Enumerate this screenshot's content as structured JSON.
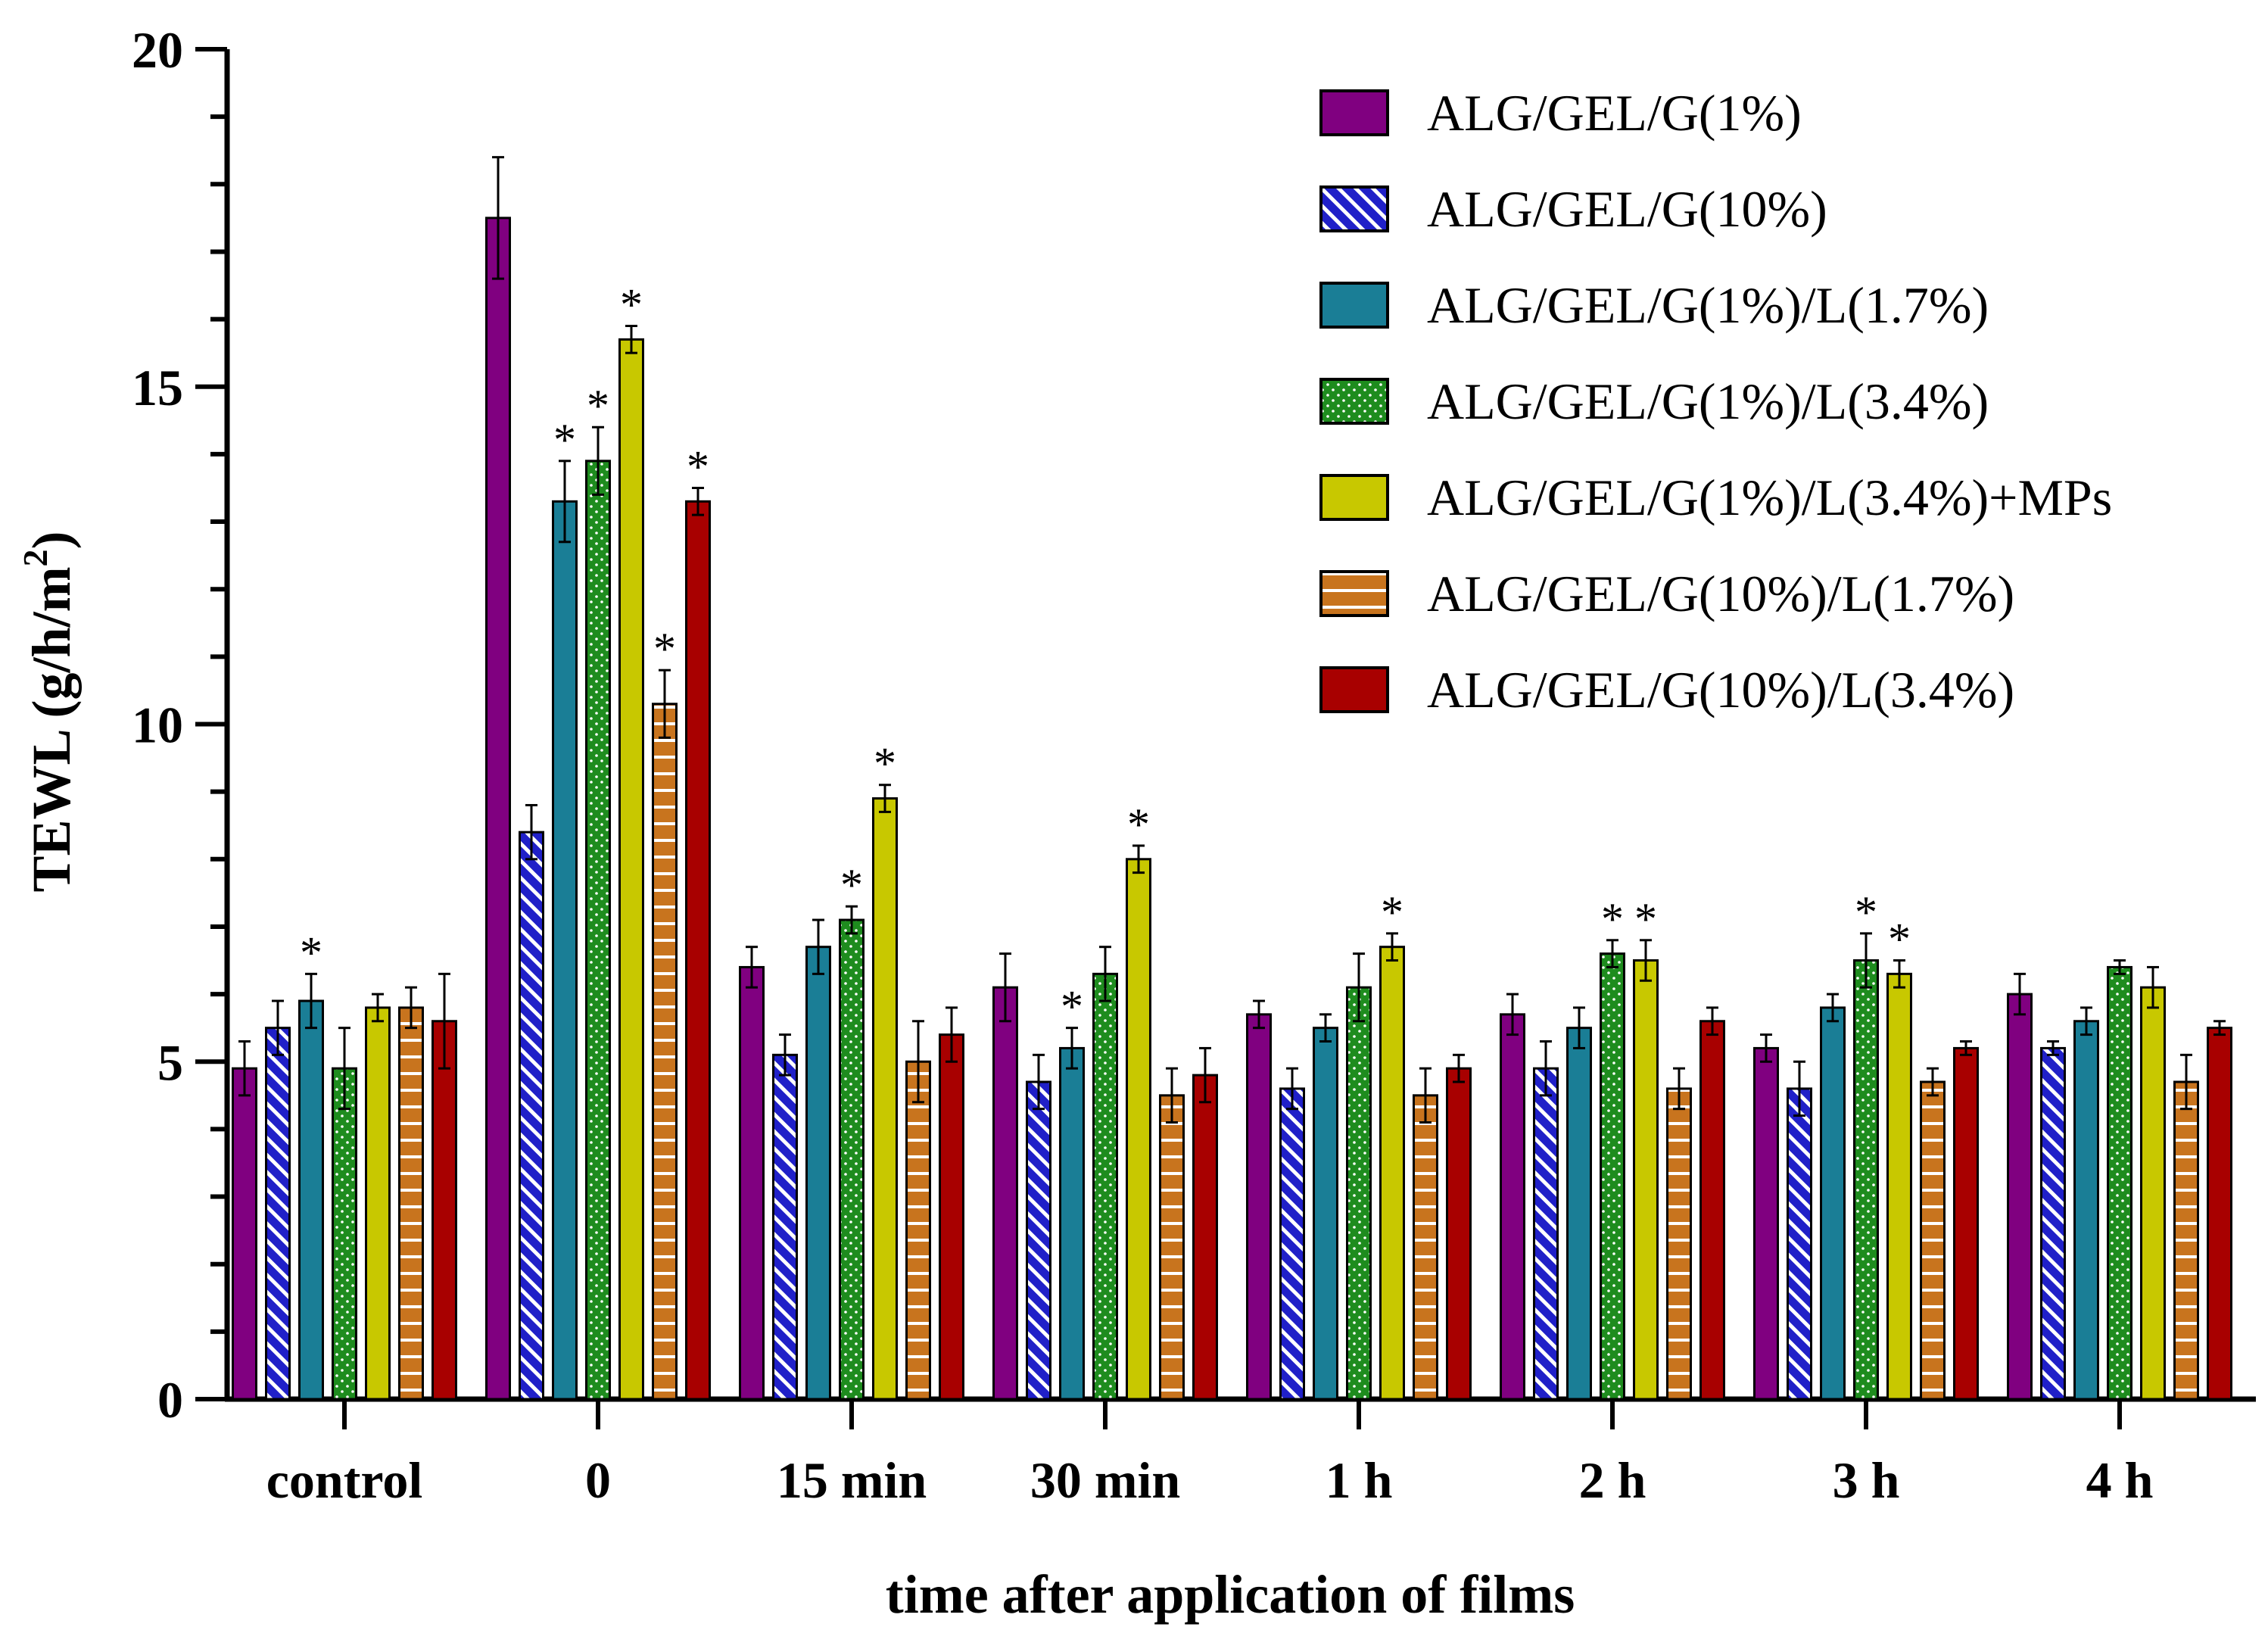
{
  "chart_data": {
    "type": "bar",
    "title": "",
    "xlabel": "time after application of films",
    "ylabel": "TEWL (g/h/m",
    "ylabel_sup": "2",
    "ylabel_close": ")",
    "ylim": [
      0,
      20
    ],
    "yticks": [
      0,
      5,
      10,
      15,
      20
    ],
    "categories": [
      "control",
      "0",
      "15 min",
      "30 min",
      "1 h",
      "2 h",
      "3 h",
      "4 h"
    ],
    "series": [
      {
        "name": "ALG/GEL/G(1%)",
        "color": "#800080",
        "pattern": "solid",
        "values": [
          4.9,
          17.5,
          6.4,
          6.1,
          5.7,
          5.7,
          5.2,
          6.0
        ],
        "errors": [
          0.4,
          0.9,
          0.3,
          0.5,
          0.2,
          0.3,
          0.2,
          0.3
        ],
        "significant": [
          false,
          false,
          false,
          false,
          false,
          false,
          false,
          false
        ]
      },
      {
        "name": "ALG/GEL/G(10%)",
        "color": "#2020c8",
        "pattern": "diagonal",
        "values": [
          5.5,
          8.4,
          5.1,
          4.7,
          4.6,
          4.9,
          4.6,
          5.2
        ],
        "errors": [
          0.4,
          0.4,
          0.3,
          0.4,
          0.3,
          0.4,
          0.4,
          0.1
        ],
        "significant": [
          false,
          false,
          false,
          false,
          false,
          false,
          false,
          false
        ]
      },
      {
        "name": "ALG/GEL/G(1%)/L(1.7%)",
        "color": "#1a7e96",
        "pattern": "solid",
        "values": [
          5.9,
          13.3,
          6.7,
          5.2,
          5.5,
          5.5,
          5.8,
          5.6
        ],
        "errors": [
          0.4,
          0.6,
          0.4,
          0.3,
          0.2,
          0.3,
          0.2,
          0.2
        ],
        "significant": [
          true,
          true,
          false,
          true,
          false,
          false,
          false,
          false
        ]
      },
      {
        "name": "ALG/GEL/G(1%)/L(3.4%)",
        "color": "#1e8c1e",
        "pattern": "dots",
        "values": [
          4.9,
          13.9,
          7.1,
          6.3,
          6.1,
          6.6,
          6.5,
          6.4
        ],
        "errors": [
          0.6,
          0.5,
          0.2,
          0.4,
          0.5,
          0.2,
          0.4,
          0.1
        ],
        "significant": [
          false,
          true,
          true,
          false,
          false,
          true,
          true,
          false
        ]
      },
      {
        "name": "ALG/GEL/G(1%)/L(3.4%)+MPs",
        "color": "#c8c800",
        "pattern": "solid",
        "values": [
          5.8,
          15.7,
          8.9,
          8.0,
          6.7,
          6.5,
          6.3,
          6.1
        ],
        "errors": [
          0.2,
          0.2,
          0.2,
          0.2,
          0.2,
          0.3,
          0.2,
          0.3
        ],
        "significant": [
          false,
          true,
          true,
          true,
          true,
          true,
          true,
          false
        ]
      },
      {
        "name": "ALG/GEL/G(10%)/L(1.7%)",
        "color": "#c8741e",
        "pattern": "horizontal",
        "values": [
          5.8,
          10.3,
          5.0,
          4.5,
          4.5,
          4.6,
          4.7,
          4.7
        ],
        "errors": [
          0.3,
          0.5,
          0.6,
          0.4,
          0.4,
          0.3,
          0.2,
          0.4
        ],
        "significant": [
          false,
          true,
          false,
          false,
          false,
          false,
          false,
          false
        ]
      },
      {
        "name": "ALG/GEL/G(10%)/L(3.4%)",
        "color": "#a80000",
        "pattern": "solid",
        "values": [
          5.6,
          13.3,
          5.4,
          4.8,
          4.9,
          5.6,
          5.2,
          5.5
        ],
        "errors": [
          0.7,
          0.2,
          0.4,
          0.4,
          0.2,
          0.2,
          0.1,
          0.1
        ],
        "significant": [
          false,
          true,
          false,
          false,
          false,
          false,
          false,
          false
        ]
      }
    ],
    "significance_marker": "*",
    "legend_position": "top-right"
  }
}
